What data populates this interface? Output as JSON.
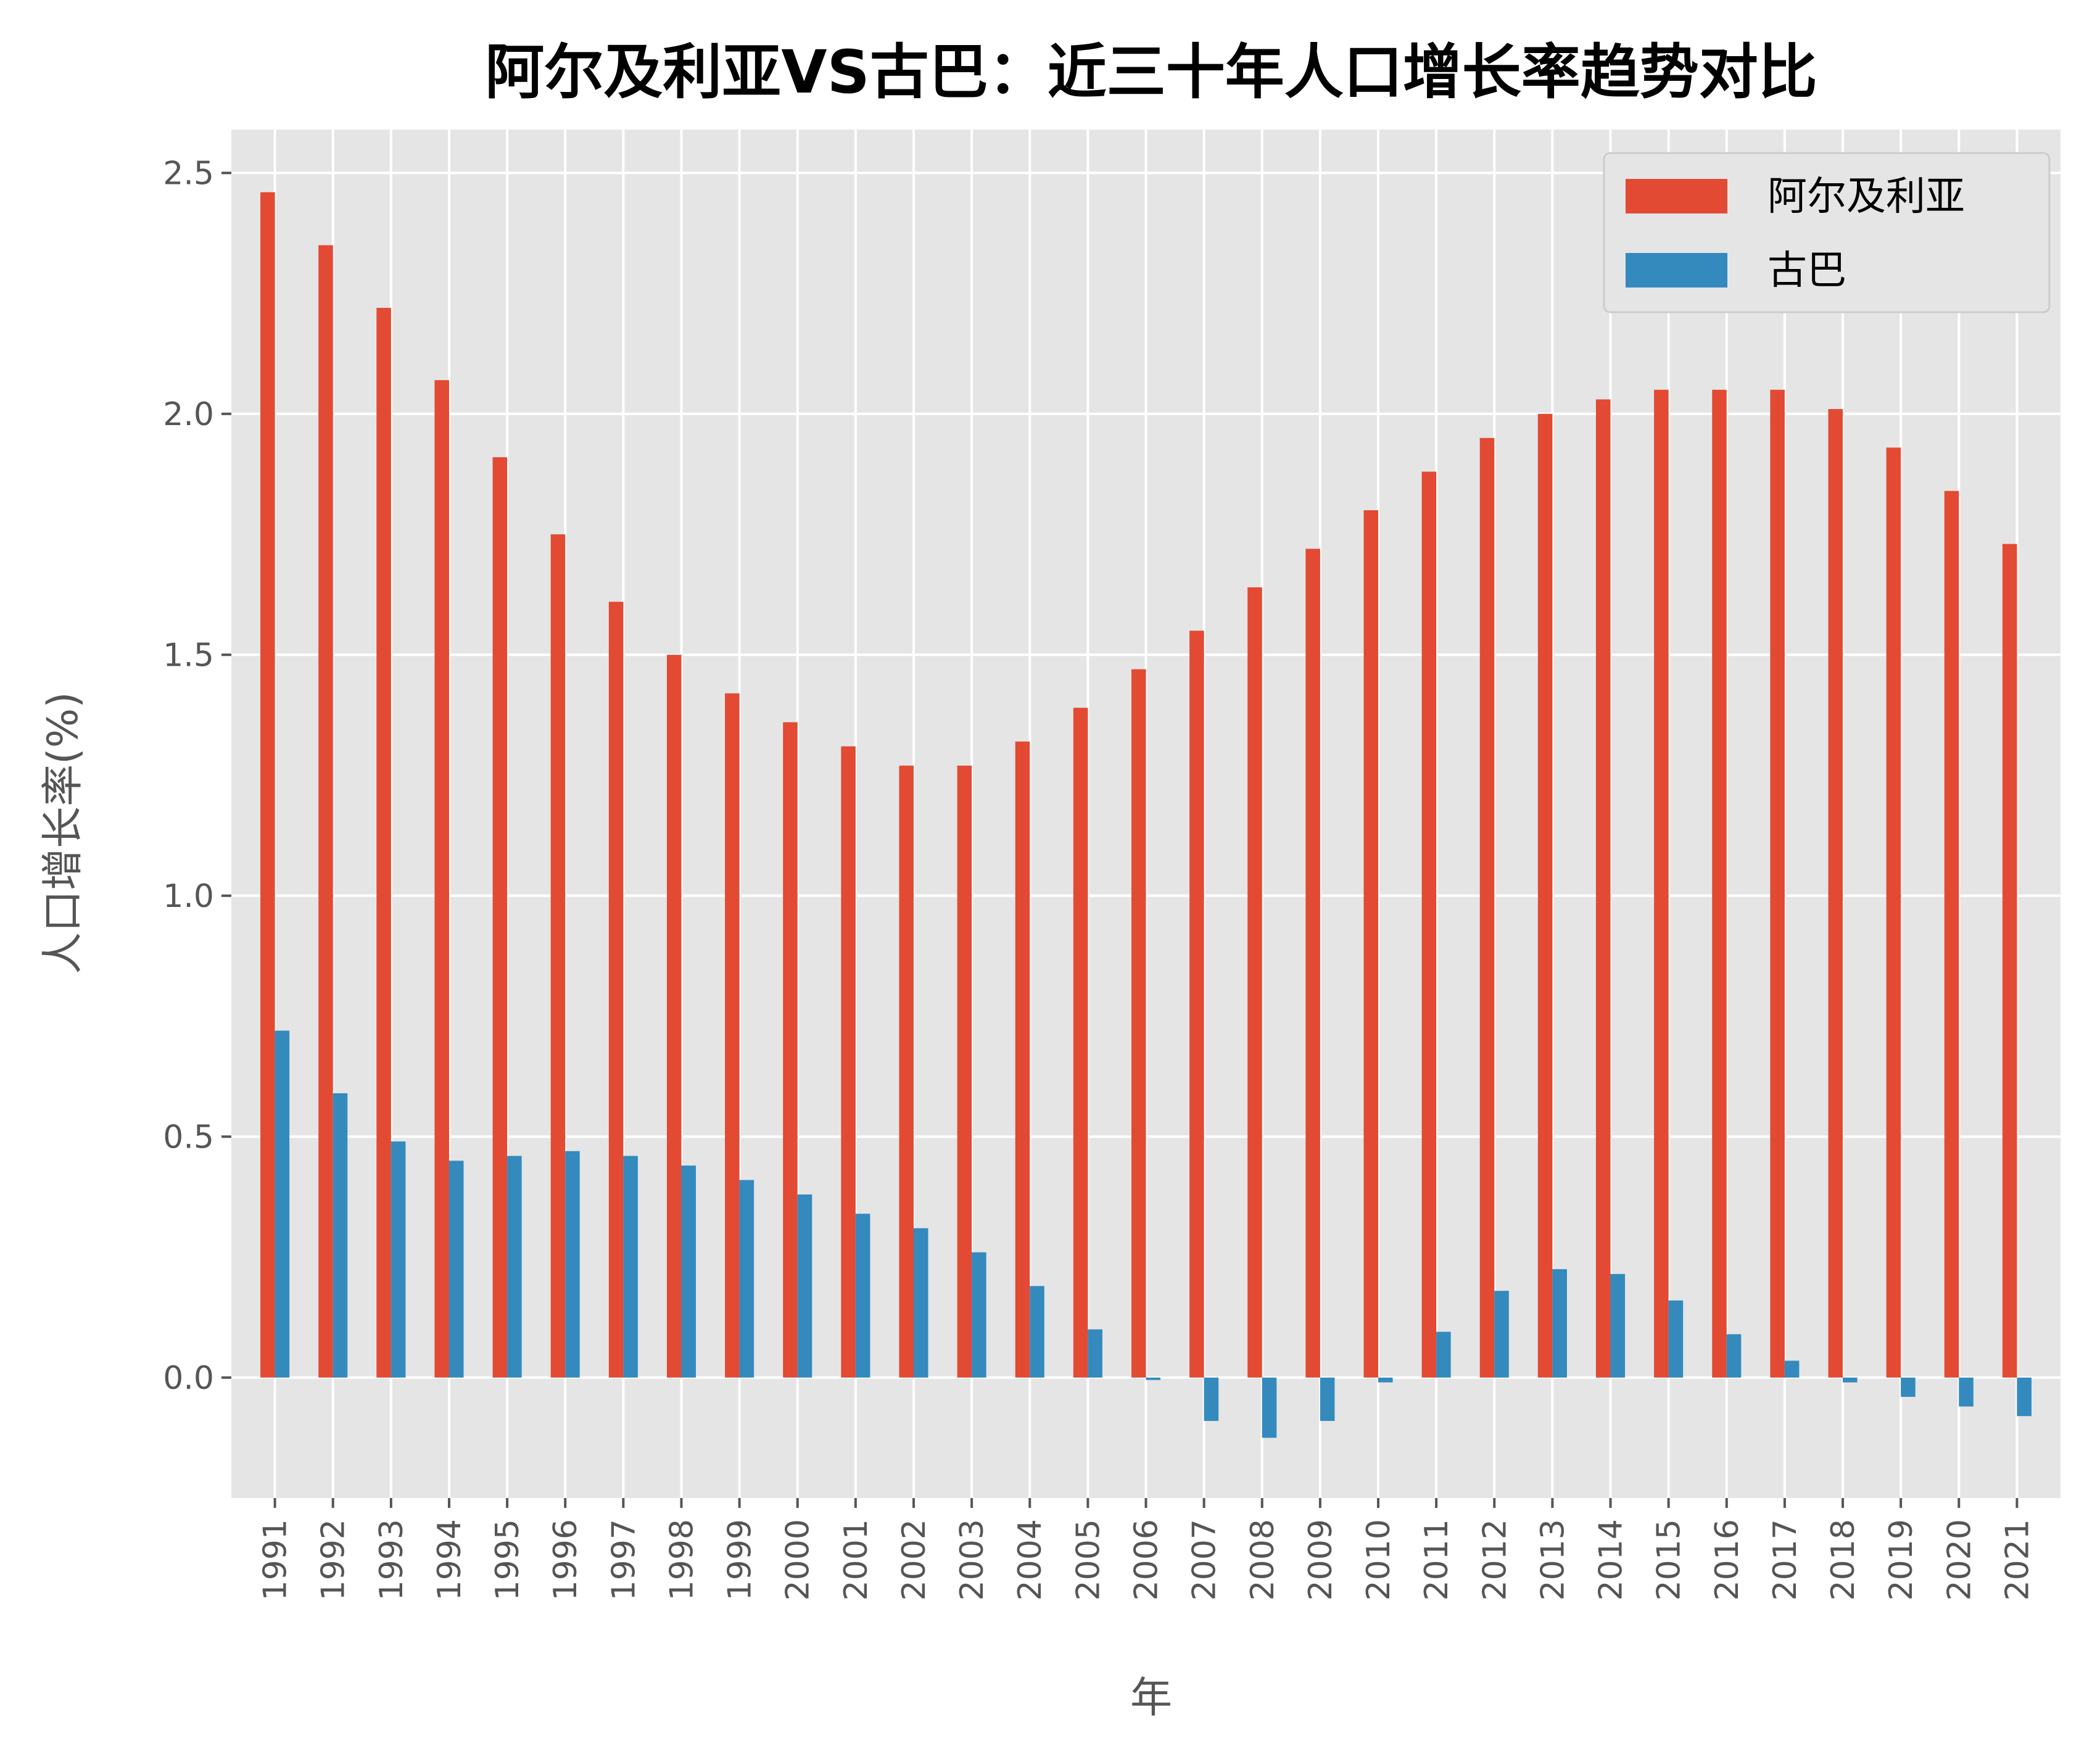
{
  "chart_data": {
    "type": "bar",
    "title": "阿尔及利亚VS古巴：近三十年人口增长率趋势对比",
    "xlabel": "年",
    "ylabel": "人口增长率(%)",
    "categories": [
      "1991",
      "1992",
      "1993",
      "1994",
      "1995",
      "1996",
      "1997",
      "1998",
      "1999",
      "2000",
      "2001",
      "2002",
      "2003",
      "2004",
      "2005",
      "2006",
      "2007",
      "2008",
      "2009",
      "2010",
      "2011",
      "2012",
      "2013",
      "2014",
      "2015",
      "2016",
      "2017",
      "2018",
      "2019",
      "2020",
      "2021"
    ],
    "series": [
      {
        "name": "阿尔及利亚",
        "color": "#E24A33",
        "values": [
          2.46,
          2.35,
          2.22,
          2.07,
          1.91,
          1.75,
          1.61,
          1.5,
          1.42,
          1.36,
          1.31,
          1.27,
          1.27,
          1.32,
          1.39,
          1.47,
          1.55,
          1.64,
          1.72,
          1.8,
          1.88,
          1.95,
          2.0,
          2.03,
          2.05,
          2.05,
          2.05,
          2.01,
          1.93,
          1.84,
          1.73
        ]
      },
      {
        "name": "古巴",
        "color": "#348ABD",
        "values": [
          0.72,
          0.59,
          0.49,
          0.45,
          0.46,
          0.47,
          0.46,
          0.44,
          0.41,
          0.38,
          0.34,
          0.31,
          0.26,
          0.19,
          0.1,
          -0.005,
          -0.09,
          -0.125,
          -0.09,
          -0.01,
          0.095,
          0.18,
          0.225,
          0.215,
          0.16,
          0.09,
          0.035,
          -0.01,
          -0.04,
          -0.06,
          -0.08
        ]
      }
    ],
    "ylim": [
      -0.25,
      2.59
    ],
    "yticks": [
      "0.0",
      "0.5",
      "1.0",
      "1.5",
      "2.0",
      "2.5"
    ],
    "grid": true,
    "legend_position": "top-right",
    "background": "#E5E5E5"
  }
}
